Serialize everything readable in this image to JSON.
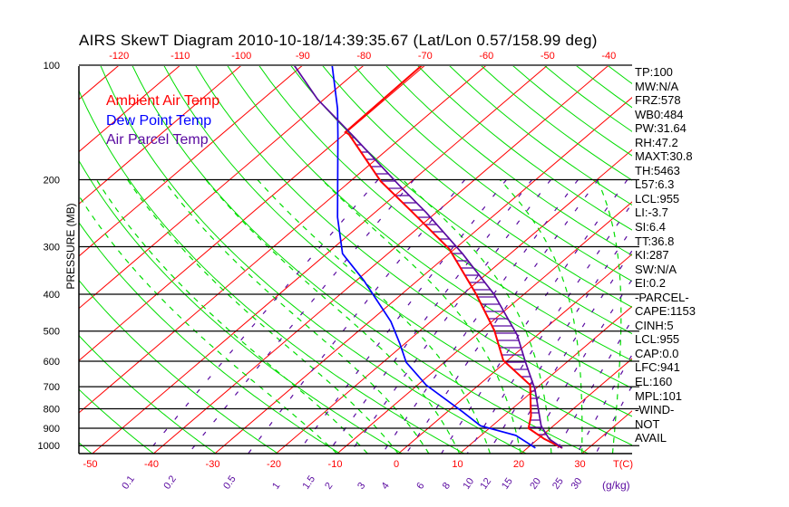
{
  "title": "AIRS SkewT Diagram 2010-10-18/14:39:35.67 (Lat/Lon 0.57/158.99 deg)",
  "legend": [
    {
      "label": "Ambient Air Temp",
      "color": "#ff0000"
    },
    {
      "label": "Dew Point Temp",
      "color": "#0000ff"
    },
    {
      "label": "Air Parcel Temp",
      "color": "#5a0aa0"
    }
  ],
  "stats": [
    "TP:100",
    "MW:N/A",
    "FRZ:578",
    "WB0:484",
    "PW:31.64",
    "RH:47.2",
    "MAXT:30.8",
    "TH:5463",
    "L57:6.3",
    "LCL:955",
    "LI:-3.7",
    "SI:6.4",
    "TT:36.8",
    "KI:287",
    "SW:N/A",
    "EI:0.2",
    "-PARCEL-",
    "CAPE:1153",
    "CINH:5",
    "LCL:955",
    "CAP:0.0",
    "LFC:941",
    "EL:160",
    "MPL:101",
    "-WIND-",
    "NOT",
    "AVAIL"
  ],
  "chart_data": {
    "type": "line",
    "title": "AIRS SkewT Diagram 2010-10-18/14:39:35.67 (Lat/Lon 0.57/158.99 deg)",
    "xlabel": "T(C)",
    "ylabel": "PRESSURE (MB)",
    "mixing_ratio_unit": "(g/kg)",
    "pressure_range": [
      100,
      1050
    ],
    "pressure_ticks": [
      100,
      200,
      300,
      400,
      500,
      600,
      700,
      800,
      900,
      1000
    ],
    "temp_ticks_bottom": [
      -50,
      -40,
      -30,
      -20,
      -10,
      0,
      10,
      20,
      30
    ],
    "temp_ticks_top": [
      -120,
      -110,
      -100,
      -90,
      -80,
      -70,
      -60,
      -50,
      -40
    ],
    "mixing_ratio_labels": [
      "0.1",
      "0.2",
      "0.5",
      "1",
      "1.5",
      "2",
      "3",
      "4",
      "6",
      "8",
      "10",
      "12",
      "15",
      "20",
      "25",
      "30"
    ],
    "series": [
      {
        "name": "Ambient Air Temp",
        "color": "#ff0000",
        "points": [
          [
            100,
            -70.5
          ],
          [
            150,
            -70.2
          ],
          [
            152,
            -69.2
          ],
          [
            202,
            -55.0
          ],
          [
            244,
            -43.8
          ],
          [
            304,
            -30.9
          ],
          [
            400,
            -17.8
          ],
          [
            498,
            -7.9
          ],
          [
            597,
            -0.7
          ],
          [
            693,
            8.4
          ],
          [
            837,
            14.5
          ],
          [
            900,
            16.4
          ],
          [
            960,
            21.0
          ],
          [
            1014,
            25.7
          ]
        ]
      },
      {
        "name": "Dew Point Temp",
        "color": "#0000ff",
        "points": [
          [
            100,
            -85.2
          ],
          [
            130,
            -76.0
          ],
          [
            153,
            -70.8
          ],
          [
            251,
            -55.2
          ],
          [
            313,
            -47.4
          ],
          [
            368,
            -38.8
          ],
          [
            472,
            -26.5
          ],
          [
            541,
            -20.7
          ],
          [
            604,
            -16.2
          ],
          [
            693,
            -8.6
          ],
          [
            815,
            2.5
          ],
          [
            887,
            8.1
          ],
          [
            940,
            15.7
          ],
          [
            1014,
            21.3
          ]
        ]
      },
      {
        "name": "Air Parcel Temp",
        "color": "#5a0aa0",
        "points": [
          [
            100,
            -91.4
          ],
          [
            123,
            -81.0
          ],
          [
            153,
            -68.4
          ],
          [
            207,
            -51.2
          ],
          [
            244,
            -41.6
          ],
          [
            313,
            -27.8
          ],
          [
            400,
            -14.9
          ],
          [
            512,
            -3.3
          ],
          [
            604,
            3.3
          ],
          [
            711,
            10.0
          ],
          [
            887,
            18.0
          ],
          [
            960,
            21.8
          ],
          [
            1014,
            25.7
          ]
        ]
      }
    ]
  }
}
